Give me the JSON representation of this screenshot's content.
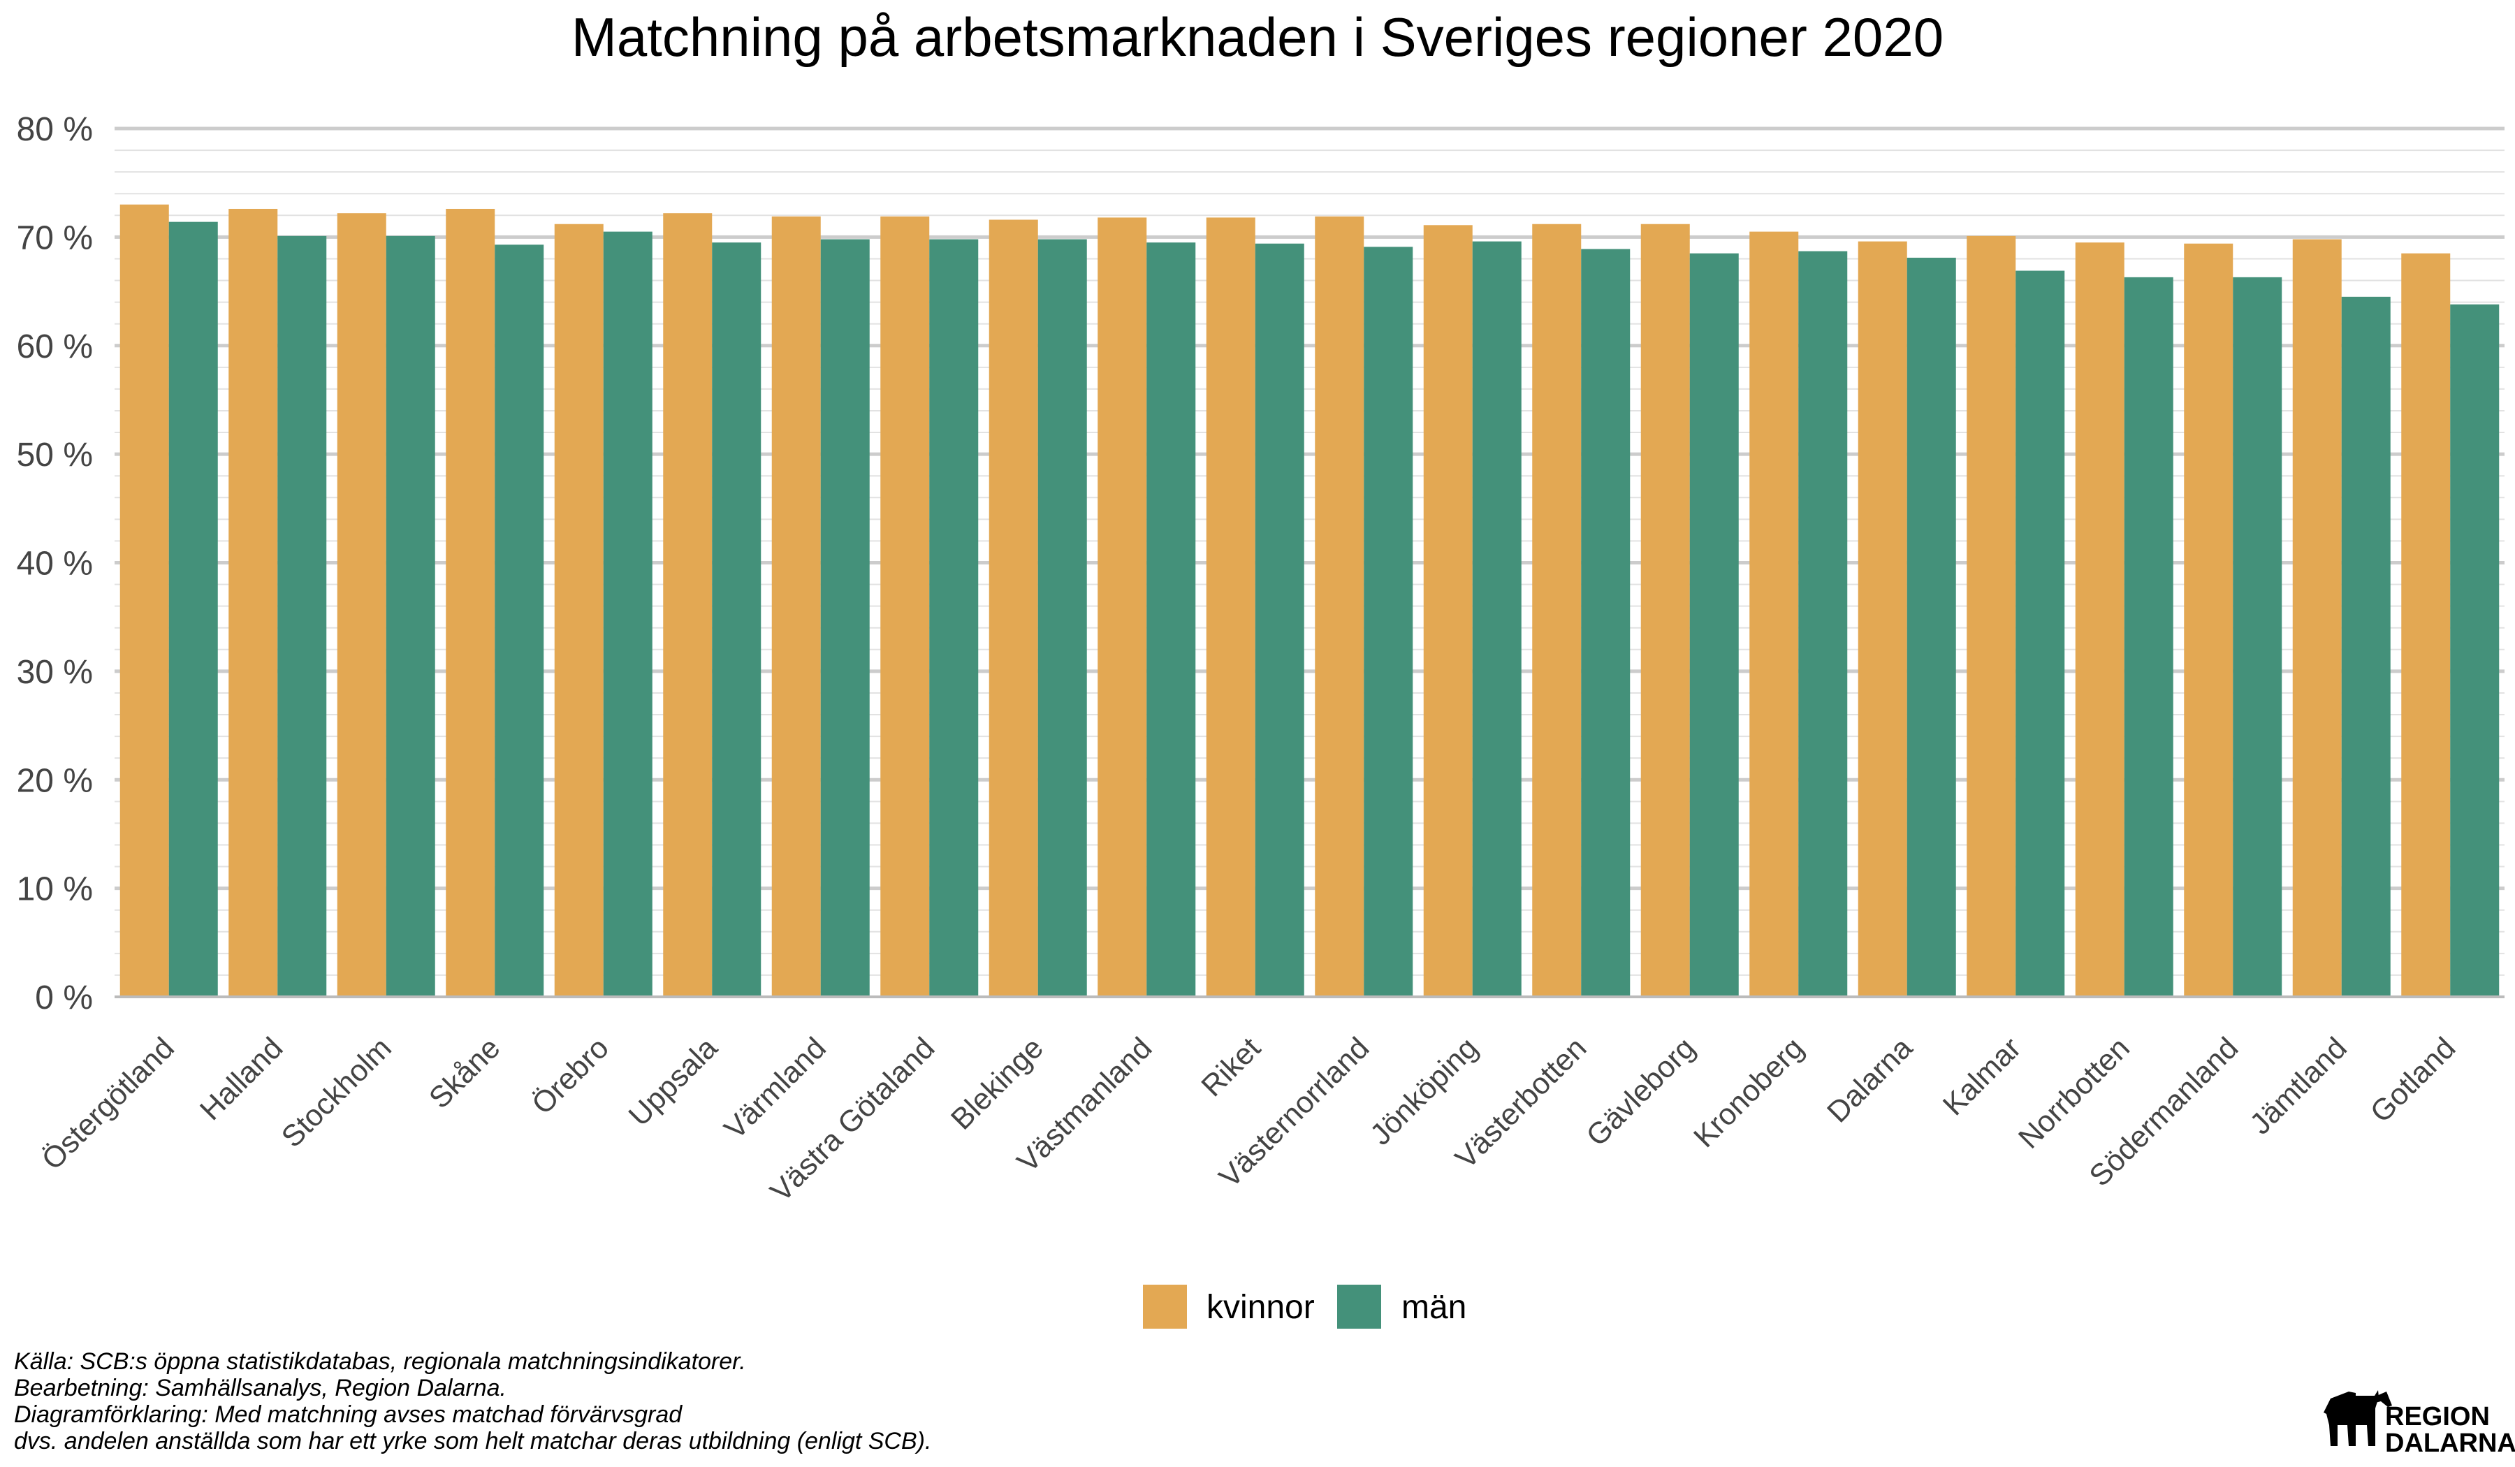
{
  "chart_data": {
    "type": "bar",
    "title": "Matchning på arbetsmarknaden i Sveriges regioner 2020",
    "xlabel": "",
    "ylabel": "",
    "ylim": [
      0,
      80
    ],
    "ytick_labels": [
      "0 %",
      "10 %",
      "20 %",
      "30 %",
      "40 %",
      "50 %",
      "60 %",
      "70 %",
      "80 %"
    ],
    "categories": [
      "Östergötland",
      "Halland",
      "Stockholm",
      "Skåne",
      "Örebro",
      "Uppsala",
      "Värmland",
      "Västra Götaland",
      "Blekinge",
      "Västmanland",
      "Riket",
      "Västernorrland",
      "Jönköping",
      "Västerbotten",
      "Gävleborg",
      "Kronoberg",
      "Dalarna",
      "Kalmar",
      "Norrbotten",
      "Södermanland",
      "Jämtland",
      "Gotland"
    ],
    "series": [
      {
        "name": "kvinnor",
        "color": "#E3A853",
        "values": [
          73.0,
          72.6,
          72.2,
          72.6,
          71.2,
          72.2,
          71.9,
          71.9,
          71.6,
          71.8,
          71.8,
          71.9,
          71.1,
          71.2,
          71.2,
          70.5,
          69.6,
          70.1,
          69.5,
          69.4,
          69.8,
          68.5
        ]
      },
      {
        "name": "män",
        "color": "#44917A",
        "values": [
          71.4,
          70.1,
          70.1,
          69.3,
          70.5,
          69.5,
          69.8,
          69.8,
          69.8,
          69.5,
          69.4,
          69.1,
          69.6,
          68.9,
          68.5,
          68.7,
          68.1,
          66.9,
          66.3,
          66.3,
          64.5,
          63.8
        ]
      }
    ],
    "grid": true,
    "legend_position": "bottom"
  },
  "caption": {
    "line1": "Källa: SCB:s öppna statistikdatabas, regionala matchningsindikatorer.",
    "line2": "Bearbetning: Samhällsanalys, Region Dalarna.",
    "line3": "Diagramförklaring: Med matchning avses matchad förvärvsgrad",
    "line4": "dvs. andelen anställda som har ett yrke som helt matchar deras utbildning (enligt SCB)."
  },
  "logo": {
    "line1": "REGION",
    "line2": "DALARNA",
    "icon": "dala-horse-icon"
  }
}
